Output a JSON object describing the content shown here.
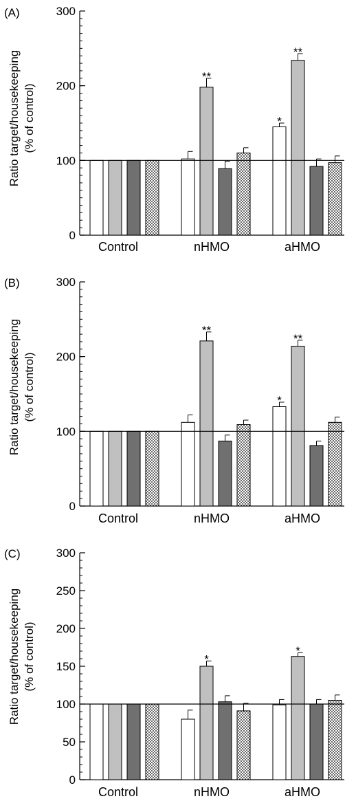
{
  "chart_data": [
    {
      "panel_label": "(A)",
      "type": "bar",
      "ylabel_line1": "Ratio target/housekeeping",
      "ylabel_line2": "(% of control)",
      "categories": [
        "Control",
        "nHMO",
        "aHMO"
      ],
      "ylim": [
        0,
        300
      ],
      "yticks": [
        "0",
        "100",
        "200",
        "300"
      ],
      "reference_line": 100,
      "series": [
        {
          "fill": "#ffffff",
          "values": [
            100,
            102,
            145
          ],
          "errors": [
            0,
            10,
            5
          ],
          "stars": [
            "",
            "",
            "*"
          ]
        },
        {
          "fill": "#c0c0c0",
          "values": [
            100,
            198,
            234
          ],
          "errors": [
            0,
            12,
            9
          ],
          "stars": [
            "",
            "**",
            "**"
          ]
        },
        {
          "fill": "#707070",
          "values": [
            100,
            89,
            92
          ],
          "errors": [
            0,
            10,
            10
          ],
          "stars": [
            "",
            "",
            ""
          ]
        },
        {
          "fill": "dotted",
          "values": [
            100,
            110,
            97
          ],
          "errors": [
            0,
            7,
            9
          ],
          "stars": [
            "",
            "",
            ""
          ]
        }
      ]
    },
    {
      "panel_label": "(B)",
      "type": "bar",
      "ylabel_line1": "Ratio target/housekeeping",
      "ylabel_line2": "(% of control)",
      "categories": [
        "Control",
        "nHMO",
        "aHMO"
      ],
      "ylim": [
        0,
        300
      ],
      "yticks": [
        "0",
        "100",
        "200",
        "300"
      ],
      "reference_line": 100,
      "series": [
        {
          "fill": "#ffffff",
          "values": [
            100,
            112,
            133
          ],
          "errors": [
            0,
            10,
            6
          ],
          "stars": [
            "",
            "",
            "*"
          ]
        },
        {
          "fill": "#c0c0c0",
          "values": [
            100,
            221,
            214
          ],
          "errors": [
            0,
            12,
            8
          ],
          "stars": [
            "",
            "**",
            "**"
          ]
        },
        {
          "fill": "#707070",
          "values": [
            100,
            87,
            81
          ],
          "errors": [
            0,
            8,
            6
          ],
          "stars": [
            "",
            "",
            ""
          ]
        },
        {
          "fill": "dotted",
          "values": [
            100,
            109,
            112
          ],
          "errors": [
            0,
            6,
            7
          ],
          "stars": [
            "",
            "",
            ""
          ]
        }
      ]
    },
    {
      "panel_label": "(C)",
      "type": "bar",
      "ylabel_line1": "Ratio target/housekeeping",
      "ylabel_line2": "(% of control)",
      "categories": [
        "Control",
        "nHMO",
        "aHMO"
      ],
      "ylim": [
        0,
        300
      ],
      "yticks": [
        "0",
        "50",
        "100",
        "150",
        "200",
        "250",
        "300"
      ],
      "reference_line": 100,
      "series": [
        {
          "fill": "#ffffff",
          "values": [
            100,
            80,
            99
          ],
          "errors": [
            0,
            12,
            7
          ],
          "stars": [
            "",
            "",
            ""
          ]
        },
        {
          "fill": "#c0c0c0",
          "values": [
            100,
            150,
            163
          ],
          "errors": [
            0,
            7,
            5
          ],
          "stars": [
            "",
            "*",
            "*"
          ]
        },
        {
          "fill": "#707070",
          "values": [
            100,
            103,
            100
          ],
          "errors": [
            0,
            8,
            6
          ],
          "stars": [
            "",
            "",
            ""
          ]
        },
        {
          "fill": "dotted",
          "values": [
            100,
            91,
            105
          ],
          "errors": [
            0,
            10,
            7
          ],
          "stars": [
            "",
            "",
            ""
          ]
        }
      ]
    }
  ]
}
